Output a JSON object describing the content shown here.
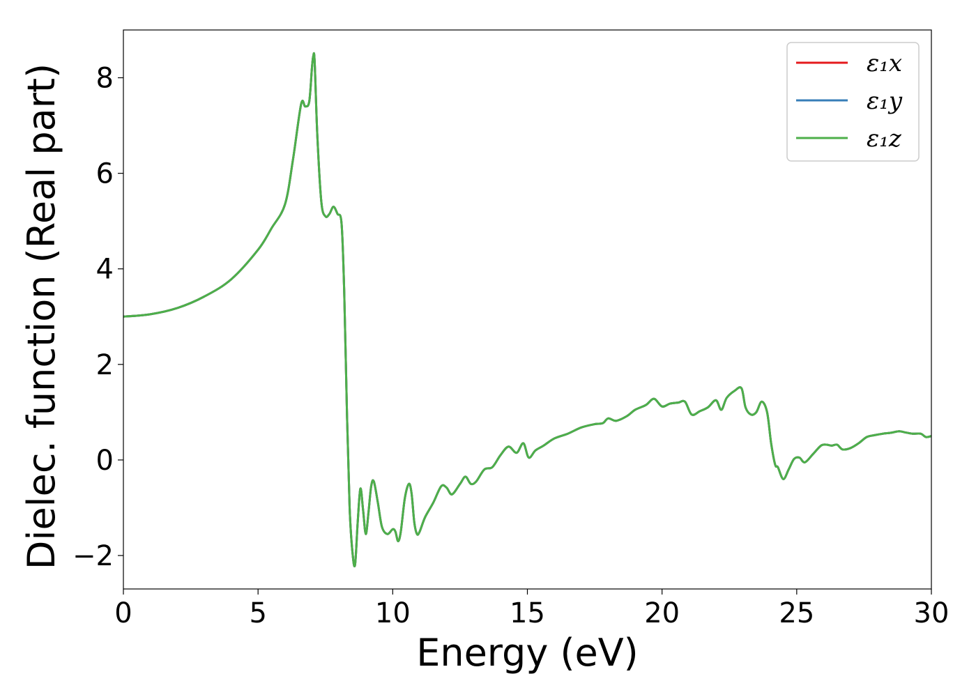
{
  "chart_data": {
    "type": "line",
    "title": "",
    "xlabel": "Energy (eV)",
    "ylabel": "Dielec. function (Real part)",
    "xlim": [
      0,
      30
    ],
    "ylim": [
      -2.7,
      9.0
    ],
    "xticks": [
      0,
      5,
      10,
      15,
      20,
      25,
      30
    ],
    "xtick_labels": [
      "0",
      "5",
      "10",
      "15",
      "20",
      "25",
      "30"
    ],
    "yticks": [
      -2,
      0,
      2,
      4,
      6,
      8
    ],
    "ytick_labels": [
      "−2",
      "0",
      "2",
      "4",
      "6",
      "8"
    ],
    "grid": false,
    "legend_position": "top-right",
    "series": [
      {
        "name": "ε₁x",
        "color": "#e41a1c",
        "values": "same as x-data table below"
      },
      {
        "name": "ε₁y",
        "color": "#377eb8",
        "values": "same as x-data table below"
      },
      {
        "name": "ε₁z",
        "color": "#4daf4a",
        "values": "same as x-data table below"
      }
    ],
    "x": [
      0,
      1,
      2,
      3,
      4,
      5,
      5.5,
      6,
      6.3,
      6.6,
      6.75,
      6.9,
      7.0,
      7.05,
      7.1,
      7.2,
      7.35,
      7.5,
      7.65,
      7.8,
      7.95,
      8.1,
      8.2,
      8.3,
      8.4,
      8.5,
      8.6,
      8.7,
      8.8,
      8.9,
      9.0,
      9.1,
      9.2,
      9.3,
      9.45,
      9.6,
      9.8,
      10.0,
      10.1,
      10.2,
      10.3,
      10.45,
      10.6,
      10.7,
      10.8,
      10.9,
      11.0,
      11.2,
      11.5,
      11.8,
      12.0,
      12.2,
      12.5,
      12.7,
      12.9,
      13.1,
      13.4,
      13.7,
      14.0,
      14.3,
      14.6,
      14.85,
      15.05,
      15.3,
      15.6,
      16.0,
      16.5,
      17.0,
      17.5,
      17.8,
      18.0,
      18.3,
      18.7,
      19.0,
      19.4,
      19.7,
      20.0,
      20.3,
      20.6,
      20.85,
      21.1,
      21.4,
      21.7,
      22.0,
      22.2,
      22.4,
      22.7,
      22.95,
      23.1,
      23.3,
      23.5,
      23.7,
      23.9,
      24.05,
      24.2,
      24.3,
      24.5,
      24.7,
      24.9,
      25.1,
      25.3,
      25.6,
      25.9,
      26.1,
      26.3,
      26.5,
      26.7,
      27.0,
      27.3,
      27.6,
      27.9,
      28.2,
      28.5,
      28.8,
      29.0,
      29.3,
      29.6,
      29.8,
      30.0
    ],
    "y": [
      3.0,
      3.05,
      3.18,
      3.42,
      3.78,
      4.4,
      4.85,
      5.35,
      6.3,
      7.45,
      7.4,
      7.5,
      8.2,
      8.45,
      8.35,
      6.8,
      5.4,
      5.1,
      5.15,
      5.3,
      5.15,
      4.95,
      3.5,
      1.0,
      -1.0,
      -1.9,
      -2.2,
      -1.3,
      -0.6,
      -1.05,
      -1.55,
      -1.1,
      -0.55,
      -0.45,
      -0.9,
      -1.4,
      -1.55,
      -1.45,
      -1.5,
      -1.7,
      -1.5,
      -0.8,
      -0.5,
      -0.7,
      -1.3,
      -1.55,
      -1.5,
      -1.2,
      -0.9,
      -0.55,
      -0.58,
      -0.72,
      -0.5,
      -0.35,
      -0.5,
      -0.45,
      -0.2,
      -0.15,
      0.1,
      0.28,
      0.15,
      0.35,
      0.05,
      0.2,
      0.3,
      0.45,
      0.55,
      0.68,
      0.75,
      0.77,
      0.87,
      0.82,
      0.92,
      1.05,
      1.15,
      1.28,
      1.12,
      1.18,
      1.2,
      1.22,
      0.95,
      1.02,
      1.1,
      1.25,
      1.05,
      1.3,
      1.45,
      1.5,
      1.1,
      0.95,
      1.0,
      1.22,
      1.0,
      0.35,
      -0.1,
      -0.15,
      -0.4,
      -0.2,
      0.02,
      0.05,
      -0.05,
      0.12,
      0.3,
      0.32,
      0.3,
      0.32,
      0.22,
      0.25,
      0.35,
      0.48,
      0.52,
      0.55,
      0.57,
      0.6,
      0.58,
      0.55,
      0.55,
      0.48,
      0.5
    ]
  }
}
